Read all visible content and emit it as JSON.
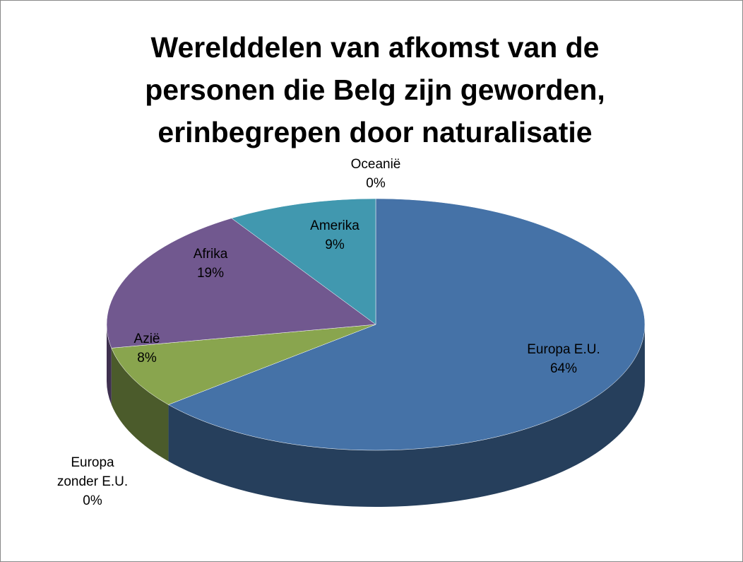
{
  "chart_data": {
    "type": "pie",
    "title": "Werelddelen van afkomst van de personen die Belg zijn geworden, erinbegrepen door naturalisatie",
    "categories": [
      "Europa E.U.",
      "Europa zonder E.U.",
      "Azië",
      "Afrika",
      "Amerika",
      "Oceanië"
    ],
    "values": [
      64,
      0,
      8,
      19,
      9,
      0
    ],
    "value_labels": [
      "64%",
      "0%",
      "8%",
      "19%",
      "9%",
      "0%"
    ],
    "colors": [
      "#4572a7",
      "#aa4643",
      "#89a54e",
      "#71588f",
      "#4198af",
      "#db843d"
    ]
  }
}
